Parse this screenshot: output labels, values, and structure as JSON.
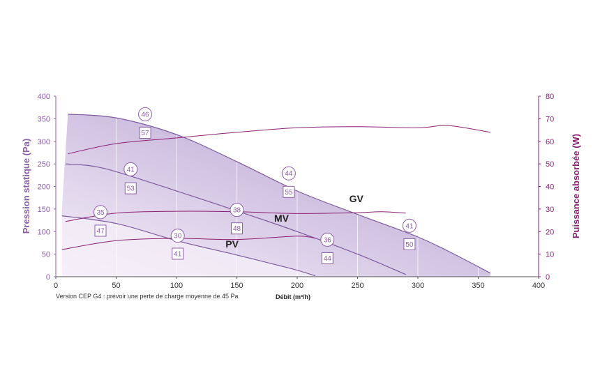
{
  "chart_data": {
    "type": "line",
    "note": "Version CEP G4 : prévoir une perte de charge moyenne de 45 Pa",
    "xlabel": "Débit (m³/h)",
    "ylabel_left": "Pression statique (Pa)",
    "ylabel_right": "Puissance absorbée (W)",
    "xlim": [
      0,
      400
    ],
    "ylim_left": [
      0,
      400
    ],
    "ylim_right": [
      0,
      80
    ],
    "x_ticks": [
      "0",
      "50",
      "100",
      "150",
      "200",
      "250",
      "300",
      "350",
      "400"
    ],
    "y_left_ticks": [
      "0",
      "50",
      "100",
      "150",
      "200",
      "250",
      "300",
      "350",
      "400"
    ],
    "y_right_ticks": [
      "0",
      "10",
      "20",
      "30",
      "40",
      "50",
      "60",
      "70",
      "80"
    ],
    "grid": "vertical",
    "colors": {
      "axis_left": "#8a5fa6",
      "axis_right": "#8a1f73",
      "pressure_curve": "#7d5a9e",
      "power_curve": "#8a1f73",
      "fill_light": "#f2ecf7",
      "fill_dark": "#a58cc4",
      "grid": "#ffffff"
    },
    "pressure_series": [
      {
        "name": "GV",
        "x": [
          10,
          50,
          100,
          150,
          200,
          250,
          300,
          330,
          360
        ],
        "y": [
          360,
          352,
          315,
          255,
          190,
          138,
          88,
          50,
          8
        ]
      },
      {
        "name": "MV",
        "x": [
          8,
          40,
          100,
          150,
          200,
          250,
          290
        ],
        "y": [
          250,
          240,
          190,
          146,
          100,
          50,
          5
        ]
      },
      {
        "name": "PV",
        "x": [
          5,
          50,
          100,
          150,
          195,
          215
        ],
        "y": [
          135,
          118,
          80,
          48,
          18,
          2
        ]
      }
    ],
    "power_series": [
      {
        "name": "GV",
        "x": [
          10,
          50,
          100,
          150,
          200,
          250,
          300,
          325,
          360
        ],
        "y": [
          54.5,
          59,
          61.5,
          64,
          66,
          66.5,
          66,
          67,
          64
        ]
      },
      {
        "name": "MV",
        "x": [
          8,
          50,
          100,
          150,
          200,
          250,
          270,
          290
        ],
        "y": [
          24.5,
          28.2,
          29,
          28.8,
          28,
          28.4,
          28.8,
          28.2
        ]
      },
      {
        "name": "PV",
        "x": [
          5,
          50,
          100,
          150,
          200,
          215
        ],
        "y": [
          12,
          16,
          17,
          16.5,
          18,
          17
        ]
      }
    ],
    "annotations": [
      {
        "shape": "circle",
        "label": "46",
        "x": 74,
        "y": 360
      },
      {
        "shape": "square",
        "label": "57",
        "x": 74,
        "y": 319
      },
      {
        "shape": "circle",
        "label": "44",
        "x": 193,
        "y": 229
      },
      {
        "shape": "square",
        "label": "55",
        "x": 193,
        "y": 188
      },
      {
        "shape": "circle",
        "label": "41",
        "x": 293,
        "y": 113
      },
      {
        "shape": "square",
        "label": "50",
        "x": 293,
        "y": 72
      },
      {
        "shape": "circle",
        "label": "41",
        "x": 62,
        "y": 238
      },
      {
        "shape": "square",
        "label": "53",
        "x": 62,
        "y": 196
      },
      {
        "shape": "circle",
        "label": "38",
        "x": 150,
        "y": 148
      },
      {
        "shape": "square",
        "label": "48",
        "x": 150,
        "y": 107
      },
      {
        "shape": "circle",
        "label": "36",
        "x": 225,
        "y": 82
      },
      {
        "shape": "square",
        "label": "44",
        "x": 225,
        "y": 41
      },
      {
        "shape": "circle",
        "label": "35",
        "x": 37,
        "y": 143
      },
      {
        "shape": "square",
        "label": "47",
        "x": 37,
        "y": 102
      },
      {
        "shape": "circle",
        "label": "30",
        "x": 101,
        "y": 91
      },
      {
        "shape": "square",
        "label": "41",
        "x": 101,
        "y": 51
      }
    ],
    "series_labels": [
      {
        "label": "GV",
        "x": 249,
        "y": 165
      },
      {
        "label": "MV",
        "x": 187,
        "y": 122
      },
      {
        "label": "PV",
        "x": 146,
        "y": 65
      }
    ]
  }
}
